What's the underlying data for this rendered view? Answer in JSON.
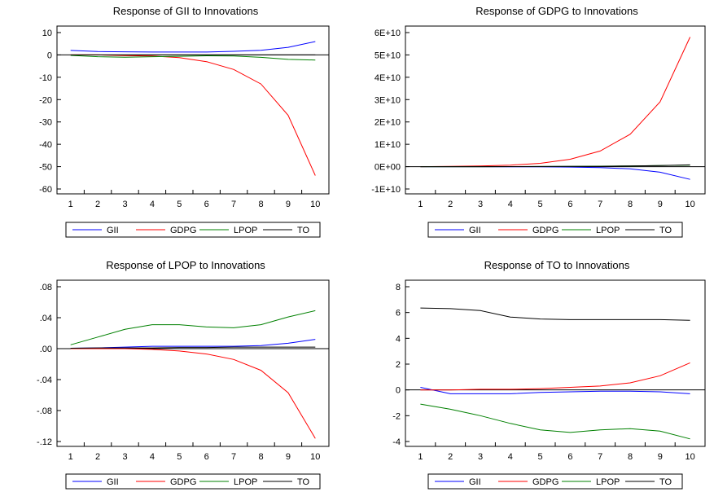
{
  "colors": {
    "GII": "#0000ff",
    "GDPG": "#ff0000",
    "LPOP": "#008000",
    "TO": "#000000"
  },
  "chart_data": [
    {
      "type": "line",
      "title": "Response of GII to Innovations",
      "x": [
        1,
        2,
        3,
        4,
        5,
        6,
        7,
        8,
        9,
        10
      ],
      "ylim": [
        -60,
        10
      ],
      "yticks": [
        10,
        0,
        -10,
        -20,
        -30,
        -40,
        -50,
        -60
      ],
      "yticklabels": [
        "10",
        "0",
        "-10",
        "-20",
        "-30",
        "-40",
        "-50",
        "-60"
      ],
      "legend": "bottom",
      "series": [
        {
          "name": "GII",
          "values": [
            2.0,
            1.5,
            1.4,
            1.3,
            1.3,
            1.3,
            1.6,
            2.1,
            3.4,
            6.0
          ]
        },
        {
          "name": "GDPG",
          "values": [
            0,
            0,
            -0.3,
            -0.5,
            -1.2,
            -3.0,
            -6.5,
            -13.0,
            -27.0,
            -54.0
          ]
        },
        {
          "name": "LPOP",
          "values": [
            -0.2,
            -0.8,
            -1.0,
            -0.8,
            -0.6,
            -0.4,
            -0.5,
            -1.1,
            -2.0,
            -2.3
          ]
        },
        {
          "name": "TO",
          "values": [
            0,
            0,
            0,
            0,
            0,
            0,
            0,
            0,
            0,
            0
          ]
        }
      ]
    },
    {
      "type": "line",
      "title": "Response of GDPG to Innovations",
      "x": [
        1,
        2,
        3,
        4,
        5,
        6,
        7,
        8,
        9,
        10
      ],
      "ylim": [
        -10000000000.0,
        60000000000.0
      ],
      "yticks": [
        60000000000.0,
        50000000000.0,
        40000000000.0,
        30000000000.0,
        20000000000.0,
        10000000000.0,
        0,
        -10000000000.0
      ],
      "yticklabels": [
        "6E+10",
        "5E+10",
        "4E+10",
        "3E+10",
        "2E+10",
        "1E+10",
        "0E+00",
        "-1E+10"
      ],
      "legend": "bottom",
      "series": [
        {
          "name": "GII",
          "values": [
            0,
            0,
            0,
            -50000000.0,
            -100000000.0,
            -200000000.0,
            -400000000.0,
            -1000000000.0,
            -2500000000.0,
            -5700000000.0
          ]
        },
        {
          "name": "GDPG",
          "values": [
            0,
            100000000.0,
            300000000.0,
            700000000.0,
            1500000000.0,
            3300000000.0,
            7000000000.0,
            14500000000.0,
            29000000000.0,
            58000000000.0
          ]
        },
        {
          "name": "LPOP",
          "values": [
            0,
            0,
            0,
            20000000.0,
            50000000.0,
            100000000.0,
            200000000.0,
            300000000.0,
            500000000.0,
            700000000.0
          ]
        },
        {
          "name": "TO",
          "values": [
            0,
            0,
            0,
            10000000.0,
            50000000.0,
            100000000.0,
            150000000.0,
            300000000.0,
            500000000.0,
            800000000.0
          ]
        }
      ]
    },
    {
      "type": "line",
      "title": "Response of LPOP to Innovations",
      "x": [
        1,
        2,
        3,
        4,
        5,
        6,
        7,
        8,
        9,
        10
      ],
      "ylim": [
        -0.12,
        0.08
      ],
      "yticks": [
        0.08,
        0.04,
        0,
        -0.04,
        -0.08,
        -0.12
      ],
      "yticklabels": [
        ".08",
        ".04",
        ".00",
        "-.04",
        "-.08",
        "-.12"
      ],
      "legend": "bottom",
      "series": [
        {
          "name": "GII",
          "values": [
            0.0005,
            0.001,
            0.002,
            0.003,
            0.003,
            0.003,
            0.003,
            0.004,
            0.007,
            0.012
          ]
        },
        {
          "name": "GDPG",
          "values": [
            0,
            0,
            0,
            -0.001,
            -0.003,
            -0.007,
            -0.014,
            -0.028,
            -0.057,
            -0.116
          ]
        },
        {
          "name": "LPOP",
          "values": [
            0.005,
            0.015,
            0.025,
            0.031,
            0.031,
            0.028,
            0.027,
            0.031,
            0.041,
            0.049
          ]
        },
        {
          "name": "TO",
          "values": [
            0.0005,
            0.001,
            0.001,
            0.001,
            0.0015,
            0.0015,
            0.002,
            0.002,
            0.002,
            0.002
          ]
        }
      ]
    },
    {
      "type": "line",
      "title": "Response of TO to Innovations",
      "x": [
        1,
        2,
        3,
        4,
        5,
        6,
        7,
        8,
        9,
        10
      ],
      "ylim": [
        -4,
        8
      ],
      "yticks": [
        8,
        6,
        4,
        2,
        0,
        -2,
        -4
      ],
      "yticklabels": [
        "8",
        "6",
        "4",
        "2",
        "0",
        "-2",
        "-4"
      ],
      "legend": "bottom",
      "series": [
        {
          "name": "GII",
          "values": [
            0.2,
            -0.3,
            -0.3,
            -0.3,
            -0.2,
            -0.15,
            -0.1,
            -0.1,
            -0.15,
            -0.3
          ]
        },
        {
          "name": "GDPG",
          "values": [
            0,
            0,
            0.05,
            0.05,
            0.1,
            0.2,
            0.3,
            0.55,
            1.1,
            2.1
          ]
        },
        {
          "name": "LPOP",
          "values": [
            -1.1,
            -1.5,
            -2.0,
            -2.6,
            -3.1,
            -3.3,
            -3.1,
            -3.0,
            -3.2,
            -3.8
          ]
        },
        {
          "name": "TO",
          "values": [
            6.35,
            6.3,
            6.15,
            5.65,
            5.5,
            5.45,
            5.45,
            5.45,
            5.45,
            5.4
          ]
        }
      ]
    }
  ]
}
